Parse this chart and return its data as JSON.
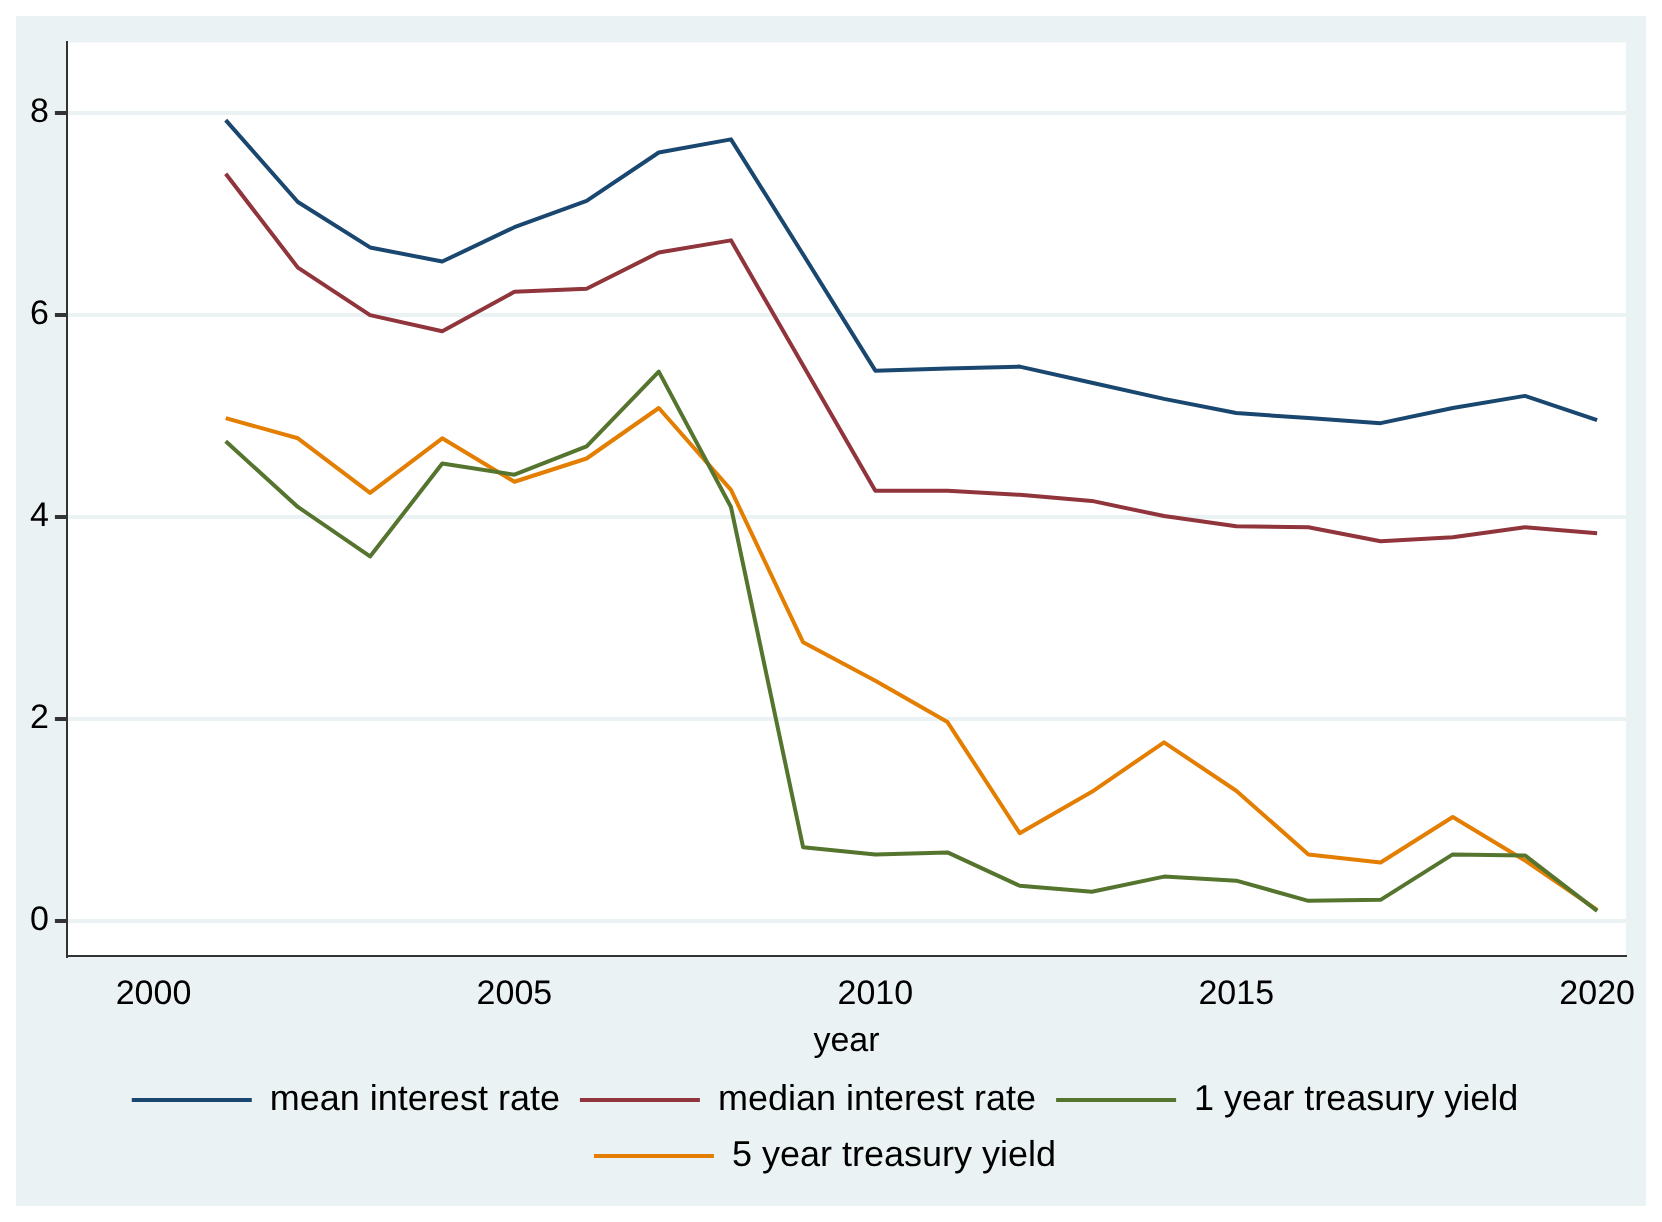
{
  "chart_data": {
    "type": "line",
    "xlabel": "year",
    "x": [
      2001,
      2002,
      2003,
      2004,
      2005,
      2006,
      2007,
      2008,
      2009,
      2010,
      2011,
      2012,
      2013,
      2014,
      2015,
      2016,
      2017,
      2018,
      2019,
      2020
    ],
    "series": [
      {
        "name": "mean interest rate",
        "color": "#1a476f",
        "values": [
          7.93,
          7.12,
          6.67,
          6.53,
          6.87,
          7.13,
          7.61,
          7.74,
          6.6,
          5.45,
          5.47,
          5.49,
          5.33,
          5.17,
          5.03,
          4.98,
          4.93,
          5.08,
          5.2,
          4.96
        ]
      },
      {
        "name": "median interest rate",
        "color": "#90353b",
        "values": [
          7.4,
          6.47,
          6.0,
          5.84,
          6.23,
          6.26,
          6.62,
          6.74,
          5.5,
          4.26,
          4.26,
          4.22,
          4.16,
          4.01,
          3.91,
          3.9,
          3.76,
          3.8,
          3.9,
          3.84
        ]
      },
      {
        "name": "1 year treasury yield",
        "color": "#55752f",
        "values": [
          4.75,
          4.1,
          3.61,
          4.53,
          4.42,
          4.7,
          5.44,
          4.1,
          0.73,
          0.66,
          0.68,
          0.35,
          0.29,
          0.44,
          0.4,
          0.2,
          0.21,
          0.66,
          0.65,
          0.1
        ]
      },
      {
        "name": "5 year treasury yield",
        "color": "#e37e00",
        "values": [
          4.98,
          4.78,
          4.24,
          4.78,
          4.35,
          4.58,
          5.08,
          4.27,
          2.76,
          2.38,
          1.97,
          0.87,
          1.28,
          1.77,
          1.29,
          0.66,
          0.58,
          1.03,
          0.6,
          0.11
        ]
      }
    ],
    "xlim": [
      1998.8,
      2020.4
    ],
    "xticks": [
      2000,
      2005,
      2010,
      2015,
      2020
    ],
    "ylim": [
      -0.35,
      8.7
    ],
    "yticks": [
      0,
      2,
      4,
      6,
      8
    ],
    "grid": "y",
    "legend": "bottom",
    "marker": "none",
    "line_style": "solid"
  }
}
